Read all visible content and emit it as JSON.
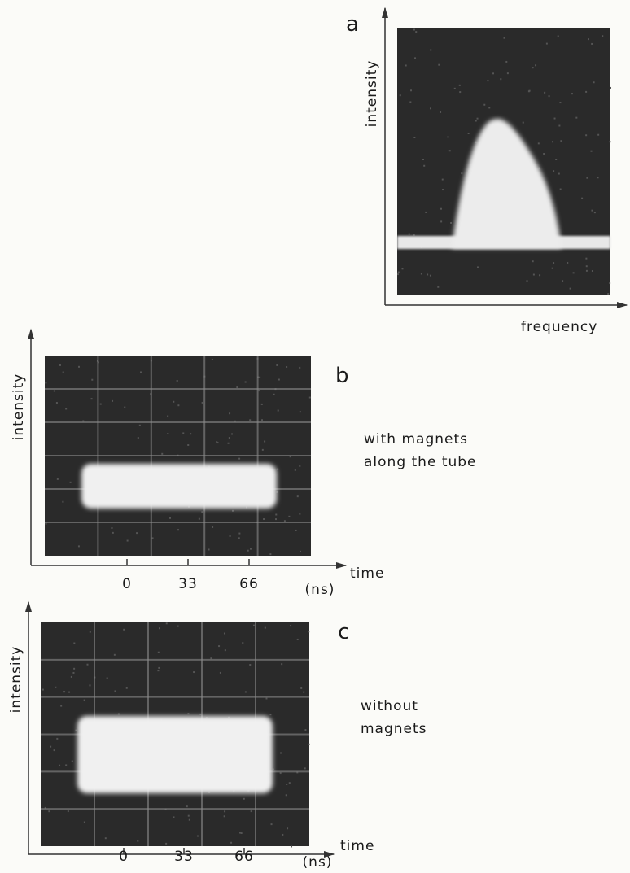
{
  "panels": [
    {
      "label": "a",
      "y_axis_label": "intensity",
      "x_axis_label": "frequency"
    },
    {
      "label": "b",
      "y_axis_label": "intensity",
      "x_axis_label": "time",
      "ticks": [
        0,
        33,
        66
      ],
      "unit": "(ns)",
      "caption": [
        "with magnets",
        "along the tube"
      ]
    },
    {
      "label": "c",
      "y_axis_label": "intensity",
      "x_axis_label": "time",
      "ticks": [
        0,
        33,
        66
      ],
      "unit": "(ns)",
      "caption": [
        "without",
        "magnets"
      ]
    }
  ]
}
